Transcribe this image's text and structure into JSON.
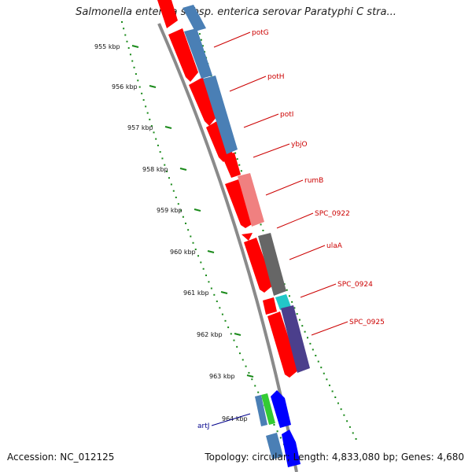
{
  "title": "Salmonella enterica subsp. enterica serovar Paratyphi C stra...",
  "accession": "Accession: NC_012125",
  "summary": "Topology: circular; Length: 4,833,080 bp; Genes: 4,680",
  "colors": {
    "backbone": "#8a8a8a",
    "ruler": "#1a8a1a",
    "forward_cds": "#ff0000",
    "forward_cds_light": "#f08080",
    "reverse_cds": "#4a7fb5",
    "gray_feature": "#666666",
    "cyan_feature": "#22c8c8",
    "purple_feature": "#4b3f8c",
    "blue_feature": "#0000ff",
    "green_feature": "#33cc33",
    "label_red": "#cc0000",
    "label_blue": "#00008b"
  },
  "ruler_labels": [
    "955 kbp",
    "956 kbp",
    "957 kbp",
    "958 kbp",
    "959 kbp",
    "960 kbp",
    "961 kbp",
    "962 kbp",
    "963 kbp",
    "964 kbp"
  ],
  "genes": [
    {
      "name": "potG",
      "color": "label_red"
    },
    {
      "name": "potH",
      "color": "label_red"
    },
    {
      "name": "potI",
      "color": "label_red"
    },
    {
      "name": "ybjO",
      "color": "label_red"
    },
    {
      "name": "rumB",
      "color": "label_red"
    },
    {
      "name": "SPC_0922",
      "color": "label_red"
    },
    {
      "name": "ulaA",
      "color": "label_red"
    },
    {
      "name": "SPC_0924",
      "color": "label_red"
    },
    {
      "name": "SPC_0925",
      "color": "label_red"
    },
    {
      "name": "artJ",
      "color": "label_blue"
    }
  ]
}
